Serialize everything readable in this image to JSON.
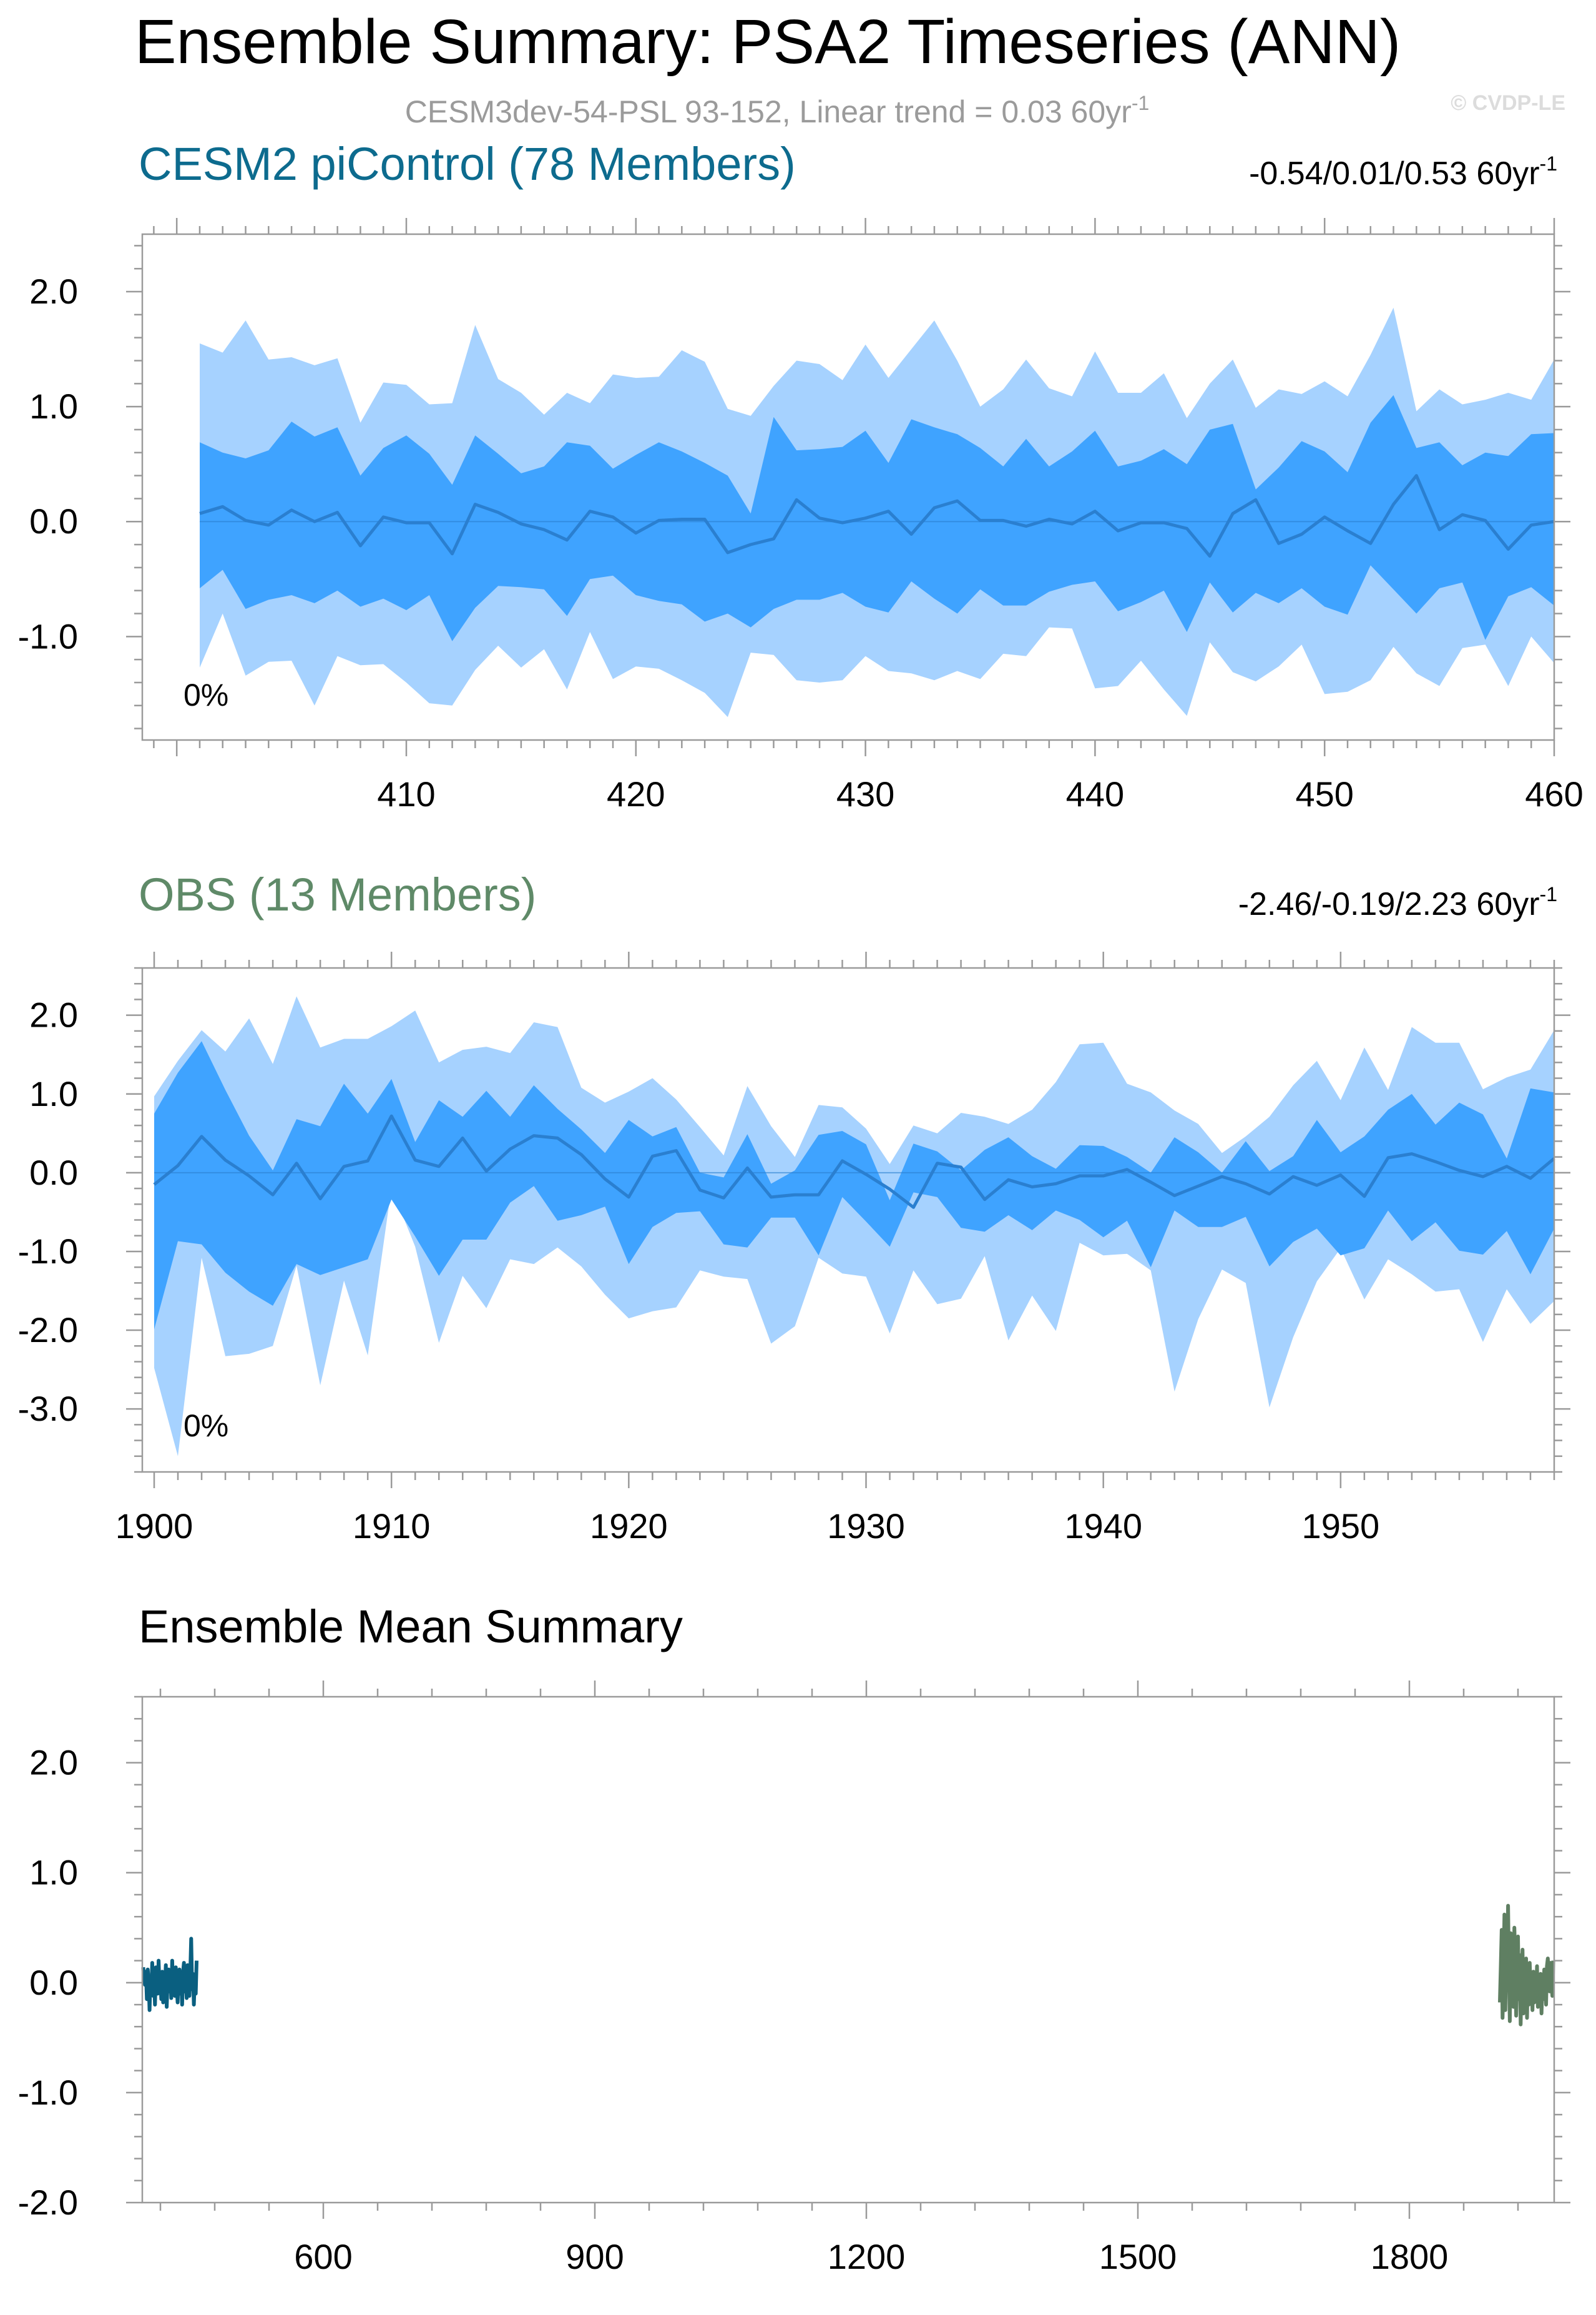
{
  "figure": {
    "title": "Ensemble Summary: PSA2 Timeseries (ANN)",
    "subtitle_main": "CESM3dev-54-PSL 93-152, Linear trend = 0.03 60yr",
    "subtitle_sup": "-1",
    "copyright": "© CVDP-LE"
  },
  "colors": {
    "outer_band": "#a6d2ff",
    "inner_band": "#3fa3ff",
    "median_line": "#2a7fd0",
    "cesm_title": "#0d6b8e",
    "obs_title": "#5f8a68",
    "cesm_mean": "#0a5f80",
    "obs_mean": "#5f7f62"
  },
  "chart_data": [
    {
      "type": "area",
      "name": "CESM2 piControl",
      "title": "CESM2 piControl (78 Members)",
      "stat_main": "-0.54/0.01/0.53 60yr",
      "stat_sup": "-1",
      "percent_label": "0%",
      "x_start": 401,
      "x_step": 1,
      "xlim": [
        398.5,
        460
      ],
      "ylim": [
        -1.9,
        2.5
      ],
      "xticks": [
        410,
        420,
        430,
        440,
        450,
        460
      ],
      "xtick_labels": [
        "410",
        "420",
        "430",
        "440",
        "450",
        "460"
      ],
      "yticks": [
        2.0,
        1.0,
        0.0,
        -1.0
      ],
      "ytick_labels": [
        "2.0",
        "1.0",
        "0.0",
        "-1.0"
      ],
      "series": [
        {
          "name": "5-95% outer upper",
          "values": [
            1.55,
            1.47,
            1.75,
            1.41,
            1.43,
            1.36,
            1.42,
            0.86,
            1.21,
            1.19,
            1.02,
            1.03,
            1.71,
            1.24,
            1.12,
            0.93,
            1.12,
            1.03,
            1.28,
            1.25,
            1.26,
            1.49,
            1.39,
            0.98,
            0.92,
            1.18,
            1.4,
            1.37,
            1.23,
            1.54,
            1.25,
            1.5,
            1.75,
            1.4,
            1.0,
            1.15,
            1.41,
            1.16,
            1.09,
            1.48,
            1.12,
            1.12,
            1.29,
            0.9,
            1.2,
            1.41,
            0.99,
            1.15,
            1.11,
            1.22,
            1.09,
            1.45,
            1.86,
            0.96,
            1.15,
            1.02,
            1.06,
            1.12,
            1.06,
            1.41
          ]
        },
        {
          "name": "25-75% inner upper",
          "values": [
            0.69,
            0.6,
            0.55,
            0.62,
            0.87,
            0.74,
            0.82,
            0.4,
            0.64,
            0.75,
            0.59,
            0.32,
            0.75,
            0.59,
            0.42,
            0.48,
            0.69,
            0.66,
            0.46,
            0.58,
            0.69,
            0.61,
            0.51,
            0.4,
            0.07,
            0.91,
            0.62,
            0.63,
            0.65,
            0.79,
            0.51,
            0.89,
            0.82,
            0.76,
            0.64,
            0.48,
            0.72,
            0.48,
            0.61,
            0.79,
            0.48,
            0.53,
            0.63,
            0.5,
            0.8,
            0.85,
            0.28,
            0.47,
            0.7,
            0.61,
            0.43,
            0.86,
            1.1,
            0.64,
            0.69,
            0.49,
            0.6,
            0.57,
            0.76,
            0.77
          ]
        },
        {
          "name": "median",
          "values": [
            0.07,
            0.13,
            0.01,
            -0.03,
            0.1,
            0.0,
            0.08,
            -0.21,
            0.04,
            -0.01,
            -0.01,
            -0.28,
            0.15,
            0.08,
            -0.02,
            -0.07,
            -0.16,
            0.09,
            0.04,
            -0.1,
            0.01,
            0.02,
            0.02,
            -0.27,
            -0.2,
            -0.15,
            0.19,
            0.03,
            -0.01,
            0.03,
            0.09,
            -0.11,
            0.12,
            0.18,
            0.01,
            0.01,
            -0.04,
            0.02,
            -0.02,
            0.09,
            -0.08,
            -0.01,
            -0.01,
            -0.06,
            -0.3,
            0.07,
            0.19,
            -0.19,
            -0.11,
            0.04,
            -0.08,
            -0.19,
            0.15,
            0.4,
            -0.07,
            0.06,
            0.01,
            -0.24,
            -0.03,
            0.0
          ]
        },
        {
          "name": "25-75% inner lower",
          "values": [
            -0.58,
            -0.42,
            -0.76,
            -0.68,
            -0.64,
            -0.71,
            -0.6,
            -0.74,
            -0.67,
            -0.77,
            -0.64,
            -1.04,
            -0.75,
            -0.56,
            -0.57,
            -0.59,
            -0.82,
            -0.5,
            -0.47,
            -0.64,
            -0.69,
            -0.72,
            -0.87,
            -0.8,
            -0.92,
            -0.76,
            -0.68,
            -0.68,
            -0.62,
            -0.74,
            -0.79,
            -0.52,
            -0.67,
            -0.8,
            -0.59,
            -0.73,
            -0.73,
            -0.61,
            -0.55,
            -0.52,
            -0.78,
            -0.7,
            -0.6,
            -0.96,
            -0.53,
            -0.79,
            -0.62,
            -0.71,
            -0.58,
            -0.74,
            -0.81,
            -0.38,
            -0.59,
            -0.8,
            -0.58,
            -0.53,
            -1.03,
            -0.65,
            -0.57,
            -0.73
          ]
        },
        {
          "name": "5-95% outer lower",
          "values": [
            -1.27,
            -0.8,
            -1.34,
            -1.22,
            -1.21,
            -1.6,
            -1.17,
            -1.25,
            -1.24,
            -1.4,
            -1.58,
            -1.6,
            -1.29,
            -1.08,
            -1.27,
            -1.11,
            -1.46,
            -0.96,
            -1.37,
            -1.26,
            -1.28,
            -1.38,
            -1.49,
            -1.7,
            -1.14,
            -1.16,
            -1.38,
            -1.4,
            -1.38,
            -1.17,
            -1.3,
            -1.32,
            -1.38,
            -1.3,
            -1.37,
            -1.15,
            -1.17,
            -0.92,
            -0.93,
            -1.45,
            -1.43,
            -1.21,
            -1.46,
            -1.69,
            -1.05,
            -1.31,
            -1.39,
            -1.26,
            -1.07,
            -1.5,
            -1.48,
            -1.38,
            -1.09,
            -1.32,
            -1.43,
            -1.1,
            -1.07,
            -1.43,
            -1.0,
            -1.23
          ]
        }
      ]
    },
    {
      "type": "area",
      "name": "OBS",
      "title": "OBS (13 Members)",
      "stat_main": "-2.46/-0.19/2.23 60yr",
      "stat_sup": "-1",
      "percent_label": "0%",
      "x_start": 1900,
      "x_step": 1,
      "xlim": [
        1899.5,
        1959
      ],
      "ylim": [
        -3.8,
        2.6
      ],
      "xticks": [
        1900,
        1910,
        1920,
        1930,
        1940,
        1950
      ],
      "xtick_labels": [
        "1900",
        "1910",
        "1920",
        "1930",
        "1940",
        "1950"
      ],
      "yticks": [
        2.0,
        1.0,
        0.0,
        -1.0,
        -2.0,
        -3.0
      ],
      "ytick_labels": [
        "2.0",
        "1.0",
        "0.0",
        "-1.0",
        "-2.0",
        "-3.0"
      ],
      "series": [
        {
          "name": "5-95% outer upper",
          "values": [
            0.97,
            1.42,
            1.81,
            1.54,
            1.96,
            1.38,
            2.24,
            1.59,
            1.7,
            1.7,
            1.86,
            2.06,
            1.4,
            1.56,
            1.6,
            1.52,
            1.91,
            1.85,
            1.08,
            0.89,
            1.03,
            1.2,
            0.93,
            0.58,
            0.22,
            1.1,
            0.59,
            0.2,
            0.86,
            0.83,
            0.56,
            0.11,
            0.6,
            0.5,
            0.76,
            0.71,
            0.62,
            0.8,
            1.15,
            1.63,
            1.65,
            1.13,
            1.02,
            0.79,
            0.62,
            0.25,
            0.46,
            0.71,
            1.11,
            1.42,
            0.92,
            1.59,
            1.05,
            1.85,
            1.65,
            1.65,
            1.06,
            1.21,
            1.31,
            1.81
          ]
        },
        {
          "name": "25-75% inner upper",
          "values": [
            0.75,
            1.27,
            1.67,
            1.05,
            0.47,
            0.03,
            0.68,
            0.59,
            1.13,
            0.75,
            1.19,
            0.39,
            0.92,
            0.71,
            1.04,
            0.71,
            1.11,
            0.81,
            0.55,
            0.25,
            0.67,
            0.46,
            0.58,
            0.0,
            -0.06,
            0.49,
            -0.14,
            0.03,
            0.48,
            0.53,
            0.36,
            -0.35,
            0.37,
            0.27,
            0.03,
            0.29,
            0.45,
            0.21,
            0.05,
            0.35,
            0.34,
            0.2,
            0.0,
            0.45,
            0.26,
            0.0,
            0.4,
            0.02,
            0.21,
            0.67,
            0.26,
            0.46,
            0.8,
            1.0,
            0.61,
            0.89,
            0.74,
            0.18,
            1.07,
            1.02
          ]
        },
        {
          "name": "median",
          "values": [
            -0.15,
            0.09,
            0.46,
            0.16,
            -0.04,
            -0.28,
            0.12,
            -0.33,
            0.08,
            0.15,
            0.72,
            0.16,
            0.08,
            0.44,
            0.02,
            0.3,
            0.47,
            0.44,
            0.23,
            -0.08,
            -0.31,
            0.21,
            0.28,
            -0.22,
            -0.32,
            0.06,
            -0.31,
            -0.28,
            -0.28,
            0.15,
            -0.02,
            -0.21,
            -0.44,
            0.12,
            0.07,
            -0.34,
            -0.09,
            -0.18,
            -0.14,
            -0.04,
            -0.04,
            0.04,
            -0.12,
            -0.29,
            -0.17,
            -0.05,
            -0.14,
            -0.27,
            -0.05,
            -0.16,
            -0.03,
            -0.3,
            0.19,
            0.24,
            0.14,
            0.03,
            -0.05,
            0.08,
            -0.07,
            0.18
          ]
        },
        {
          "name": "25-75% inner lower",
          "values": [
            -1.99,
            -0.87,
            -0.91,
            -1.27,
            -1.51,
            -1.69,
            -1.16,
            -1.3,
            -1.2,
            -1.1,
            -0.34,
            -0.81,
            -1.31,
            -0.85,
            -0.85,
            -0.38,
            -0.17,
            -0.61,
            -0.54,
            -0.43,
            -1.16,
            -0.69,
            -0.51,
            -0.49,
            -0.91,
            -0.95,
            -0.57,
            -0.57,
            -1.05,
            -0.31,
            -0.62,
            -0.94,
            -0.25,
            -0.31,
            -0.7,
            -0.75,
            -0.54,
            -0.73,
            -0.48,
            -0.6,
            -0.82,
            -0.61,
            -1.2,
            -0.48,
            -0.69,
            -0.69,
            -0.56,
            -1.19,
            -0.88,
            -0.71,
            -1.05,
            -0.96,
            -0.48,
            -0.87,
            -0.63,
            -0.99,
            -1.04,
            -0.74,
            -1.29,
            -0.71
          ]
        },
        {
          "name": "5-95% outer lower",
          "values": [
            -2.48,
            -3.6,
            -1.08,
            -2.33,
            -2.3,
            -2.2,
            -1.18,
            -2.7,
            -1.37,
            -2.32,
            -0.19,
            -0.94,
            -2.16,
            -1.31,
            -1.72,
            -1.1,
            -1.16,
            -0.95,
            -1.19,
            -1.55,
            -1.85,
            -1.76,
            -1.71,
            -1.24,
            -1.32,
            -1.35,
            -2.17,
            -1.95,
            -1.08,
            -1.28,
            -1.32,
            -2.04,
            -1.24,
            -1.67,
            -1.6,
            -1.06,
            -2.13,
            -1.56,
            -2.01,
            -0.89,
            -1.05,
            -1.03,
            -1.24,
            -2.78,
            -1.86,
            -1.23,
            -1.4,
            -2.98,
            -2.09,
            -1.38,
            -0.96,
            -1.61,
            -1.1,
            -1.29,
            -1.51,
            -1.48,
            -2.15,
            -1.48,
            -1.92,
            -1.63
          ]
        }
      ]
    },
    {
      "type": "line",
      "name": "Ensemble Mean Summary",
      "title": "Ensemble Mean Summary",
      "xlim": [
        400,
        1960
      ],
      "ylim": [
        -2.0,
        2.6
      ],
      "xticks": [
        600,
        900,
        1200,
        1500,
        1800
      ],
      "xtick_labels": [
        "600",
        "900",
        "1200",
        "1500",
        "1800"
      ],
      "yticks": [
        2.0,
        1.0,
        0.0,
        -1.0,
        -2.0
      ],
      "ytick_labels": [
        "2.0",
        "1.0",
        "0.0",
        "-1.0",
        "-2.0"
      ],
      "series": [
        {
          "name": "CESM2 piControl ensemble mean",
          "x_start": 401,
          "x_step": 1,
          "values": [
            0.14,
            0.05,
            -0.02,
            0.1,
            -0.15,
            0.12,
            0.02,
            -0.25,
            0.05,
            -0.08,
            0.18,
            -0.12,
            0.02,
            -0.2,
            0.14,
            0.06,
            -0.1,
            0.2,
            -0.05,
            0.02,
            -0.15,
            0.1,
            -0.18,
            0.06,
            -0.02,
            0.16,
            -0.22,
            0.04,
            0.12,
            -0.08,
            0.08,
            -0.14,
            0.2,
            -0.06,
            0.02,
            -0.12,
            0.14,
            -0.04,
            -0.18,
            0.06,
            0.12,
            -0.1,
            0.02,
            -0.2,
            0.1,
            0.18,
            -0.08,
            0.04,
            -0.14,
            0.16,
            -0.02,
            -0.12,
            0.1,
            0.4,
            -0.06,
            0.08,
            -0.2,
            0.05,
            -0.1,
            0.2
          ]
        },
        {
          "name": "OBS ensemble mean",
          "x_start": 1900,
          "x_step": 1,
          "values": [
            -0.18,
            0.15,
            0.48,
            -0.32,
            0.05,
            0.62,
            -0.25,
            0.38,
            -0.05,
            0.7,
            0.12,
            -0.35,
            0.45,
            0.02,
            0.28,
            -0.22,
            0.5,
            0.18,
            -0.3,
            0.1,
            0.42,
            -0.15,
            0.25,
            -0.38,
            0.08,
            0.3,
            -0.28,
            0.15,
            -0.05,
            0.22,
            -0.32,
            0.12,
            -0.2,
            0.18,
            -0.08,
            0.05,
            -0.25,
            0.1,
            -0.18,
            0.02,
            -0.12,
            0.15,
            -0.22,
            0.05,
            -0.1,
            0.08,
            -0.28,
            0.02,
            -0.15,
            0.12,
            -0.05,
            -0.2,
            0.15,
            0.22,
            0.05,
            -0.08,
            0.18,
            0.02,
            -0.12,
            0.2
          ]
        }
      ]
    }
  ]
}
